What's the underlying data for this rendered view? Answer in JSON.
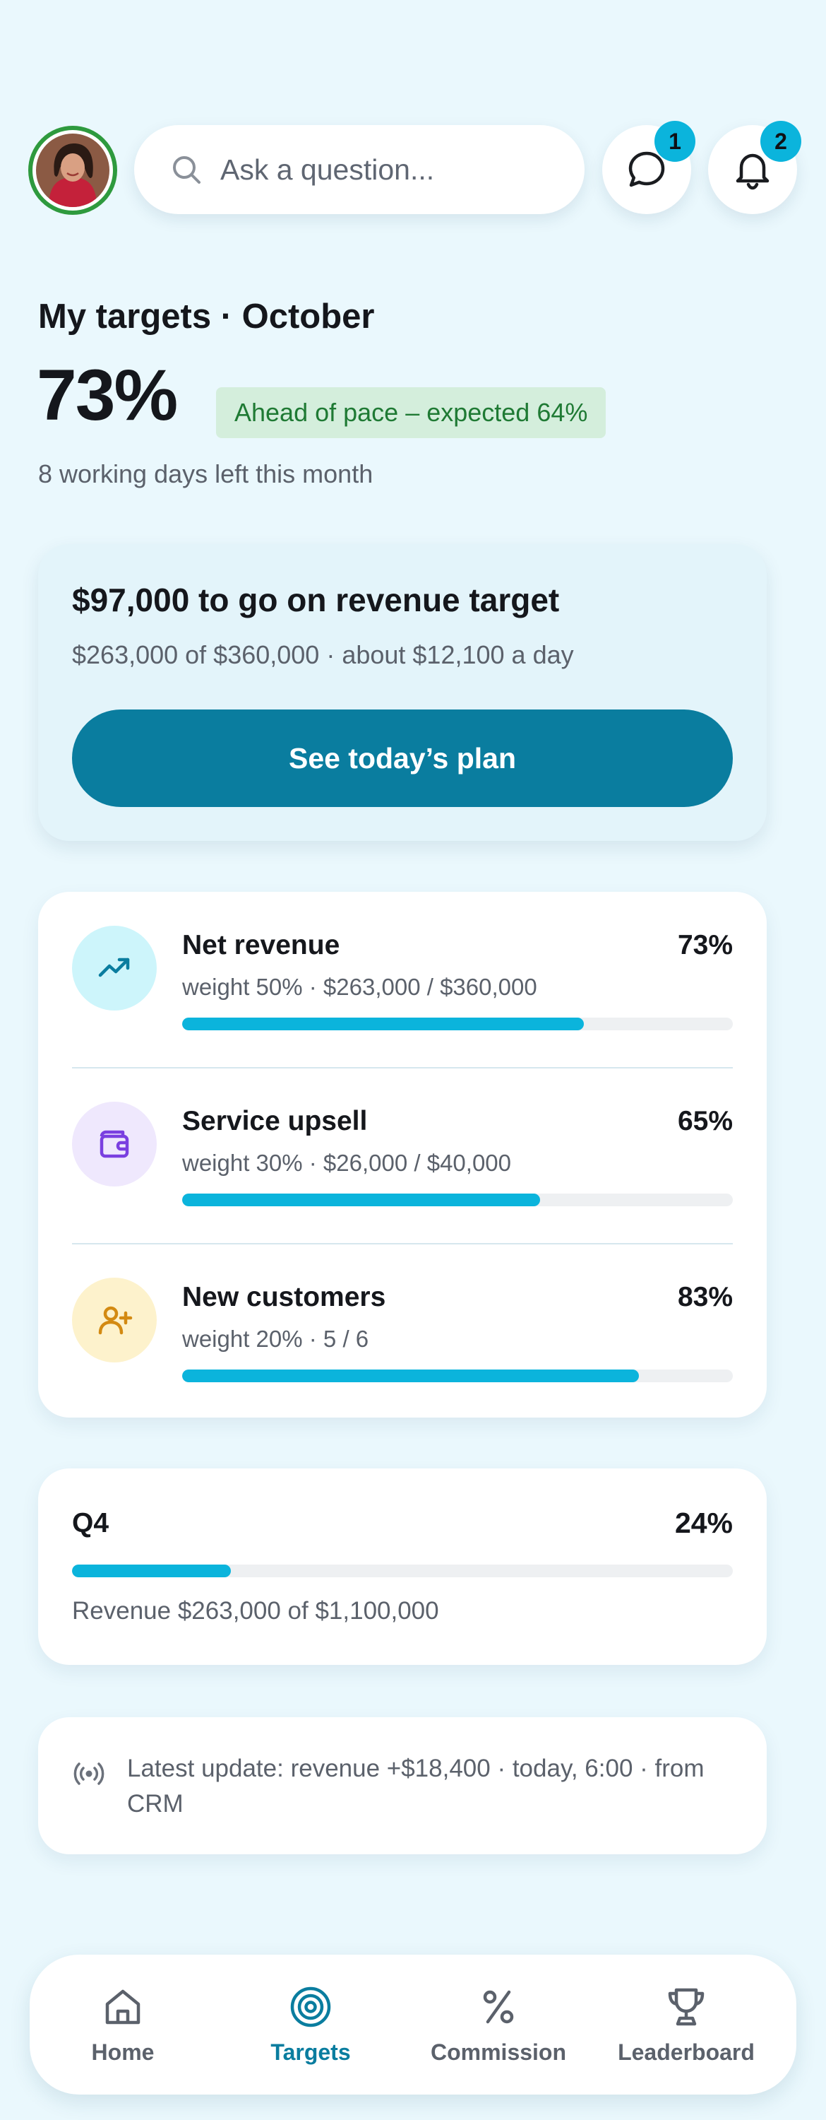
{
  "header": {
    "search_placeholder": "Ask a question...",
    "messages_badge": "1",
    "notifications_badge": "2"
  },
  "summary": {
    "title": "My targets · October",
    "percent": "73%",
    "pace_chip": "Ahead of pace – expected 64%",
    "days_left": "8 working days left this month"
  },
  "cta": {
    "headline": "$97,000 to go on revenue target",
    "subtext": "$263,000 of $360,000 · about $12,100 a day",
    "button": "See today’s plan"
  },
  "metrics": [
    {
      "name": "Net revenue",
      "percent": "73%",
      "detail": "weight 50% · $263,000 / $360,000",
      "progress": 0.73,
      "icon": "trending-up-icon",
      "icon_color": "#0a7d9f",
      "icon_bg": "#cdf5fb"
    },
    {
      "name": "Service upsell",
      "percent": "65%",
      "detail": "weight 30% · $26,000 / $40,000",
      "progress": 0.65,
      "icon": "wallet-icon",
      "icon_color": "#7a3fe0",
      "icon_bg": "#efe8fd"
    },
    {
      "name": "New customers",
      "percent": "83%",
      "detail": "weight 20% · 5 / 6",
      "progress": 0.83,
      "icon": "user-plus-icon",
      "icon_color": "#d38a12",
      "icon_bg": "#fdf2cc"
    }
  ],
  "q4": {
    "label": "Q4",
    "percent": "24%",
    "progress": 0.24,
    "detail": "Revenue $263,000 of $1,100,000"
  },
  "update": {
    "text": "Latest update: revenue +$18,400 · today, 6:00 · from CRM"
  },
  "nav": [
    {
      "label": "Home",
      "icon": "home-icon",
      "active": false
    },
    {
      "label": "Targets",
      "icon": "target-icon",
      "active": true
    },
    {
      "label": "Commission",
      "icon": "percent-icon",
      "active": false
    },
    {
      "label": "Leaderboard",
      "icon": "trophy-icon",
      "active": false
    }
  ],
  "colors": {
    "accent": "#0a7d9f",
    "progress": "#0bb4dc",
    "background": "#eaf8fd",
    "pace_chip_bg": "#d4eedc",
    "pace_chip_text": "#1f7a34",
    "avatar_ring": "#2e9a3e"
  }
}
